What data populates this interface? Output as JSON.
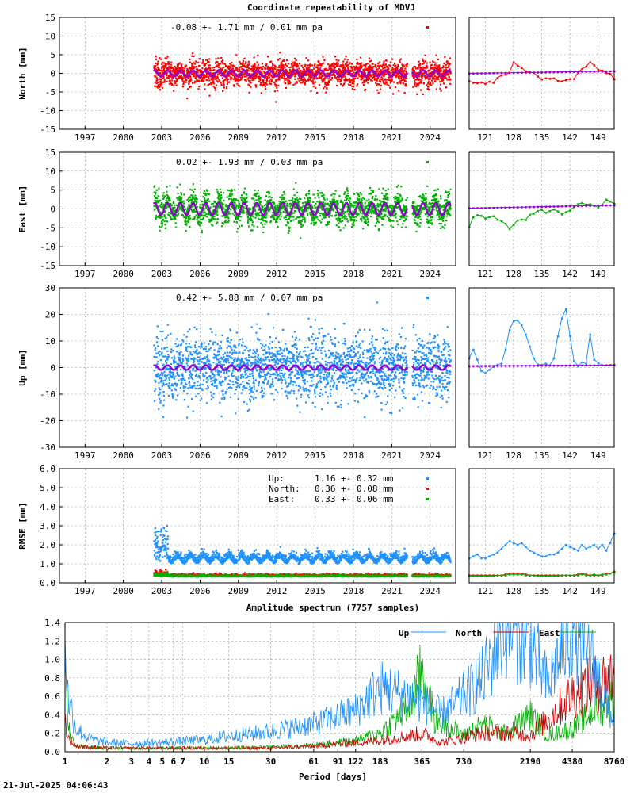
{
  "chart_data": [
    {
      "type": "scatter",
      "title": "Coordinate repeatability of MDVJ",
      "ylabel": "North [mm]",
      "ylim": [
        -15,
        15
      ],
      "yticks": [
        15,
        10,
        5,
        0,
        -5,
        -10,
        -15
      ],
      "xlim": [
        1995.0,
        2026.0
      ],
      "xticks": [
        1997,
        2000,
        2003,
        2006,
        2009,
        2012,
        2015,
        2018,
        2021,
        2024
      ],
      "annotation": "-0.08 +- 1.71 mm /  0.01 mm pa",
      "color": "#ff0000",
      "model_color": "#9400d3",
      "data_span": [
        2002.4,
        2025.6
      ],
      "gap": [
        2022.2,
        2022.6
      ],
      "scatter_sd": 1.7,
      "seasonal_amplitude": 0.8,
      "zoom": {
        "xlim": [
          117,
          153
        ],
        "xticks": [
          121,
          128,
          135,
          142,
          149
        ],
        "ylim": [
          -15,
          15
        ],
        "series": [
          -2.1,
          -2.5,
          -2.6,
          -2.4,
          -2.8,
          -2.2,
          -2.5,
          -1.2,
          -0.5,
          -0.3,
          0.2,
          3.0,
          2.1,
          1.5,
          0.6,
          0.3,
          0.2,
          -0.8,
          -1.6,
          -1.3,
          -1.4,
          -1.3,
          -2.0,
          -2.1,
          -1.8,
          -1.5,
          -1.5,
          0.2,
          1.2,
          1.8,
          3.0,
          2.2,
          1.0,
          0.8,
          0.1,
          -0.1,
          -1.5
        ],
        "model": [
          0.0,
          0.6
        ]
      }
    },
    {
      "type": "scatter",
      "ylabel": "East [mm]",
      "ylim": [
        -15,
        15
      ],
      "yticks": [
        15,
        10,
        5,
        0,
        -5,
        -10,
        -15
      ],
      "xlim": [
        1995.0,
        2026.0
      ],
      "xticks": [
        1997,
        2000,
        2003,
        2006,
        2009,
        2012,
        2015,
        2018,
        2021,
        2024
      ],
      "annotation": "0.02 +- 1.93 mm /  0.03 mm pa",
      "color": "#00b000",
      "model_color": "#9400d3",
      "data_span": [
        2002.4,
        2025.6
      ],
      "gap": [
        2022.2,
        2022.6
      ],
      "scatter_sd": 1.9,
      "seasonal_amplitude": 1.6,
      "zoom": {
        "xlim": [
          117,
          153
        ],
        "xticks": [
          121,
          128,
          135,
          142,
          149
        ],
        "ylim": [
          -15,
          15
        ],
        "series": [
          -4.8,
          -2.2,
          -1.6,
          -1.8,
          -2.5,
          -2.1,
          -1.9,
          -2.8,
          -3.2,
          -3.9,
          -5.3,
          -4.2,
          -3.0,
          -2.8,
          -2.9,
          -1.5,
          -1.2,
          -0.5,
          -0.2,
          -1.0,
          -0.5,
          -0.1,
          -0.6,
          -1.4,
          -0.8,
          -0.4,
          0.5,
          1.3,
          1.6,
          1.2,
          1.3,
          0.9,
          0.4,
          1.1,
          2.5,
          2.0,
          1.4
        ],
        "model": [
          0.2,
          1.0
        ]
      }
    },
    {
      "type": "scatter",
      "ylabel": "Up [mm]",
      "ylim": [
        -30,
        30
      ],
      "yticks": [
        30,
        20,
        10,
        0,
        -10,
        -20,
        -30
      ],
      "xlim": [
        1995.0,
        2026.0
      ],
      "xticks": [
        1997,
        2000,
        2003,
        2006,
        2009,
        2012,
        2015,
        2018,
        2021,
        2024
      ],
      "annotation": "0.42 +- 5.88 mm /  0.07 mm pa",
      "color": "#1e90ff",
      "model_color": "#9400d3",
      "data_span": [
        2002.4,
        2025.6
      ],
      "gap": [
        2022.2,
        2022.6
      ],
      "scatter_sd": 5.9,
      "seasonal_amplitude": 0.9,
      "zoom": {
        "xlim": [
          117,
          153
        ],
        "xticks": [
          121,
          128,
          135,
          142,
          149
        ],
        "ylim": [
          -30,
          30
        ],
        "series": [
          3.5,
          6.8,
          3.0,
          -1.2,
          -2.1,
          -0.8,
          0.3,
          1.1,
          1.5,
          6.8,
          14.2,
          17.5,
          17.8,
          16.0,
          12.5,
          8.0,
          3.5,
          1.2,
          1.0,
          1.5,
          0.8,
          3.5,
          11.8,
          18.5,
          22.0,
          12.0,
          2.5,
          0.5,
          2.0,
          1.5,
          12.5,
          3.0,
          1.8,
          0.9,
          0.9,
          1.0,
          1.0
        ],
        "model": [
          0.6,
          0.9
        ]
      }
    },
    {
      "type": "scatter",
      "ylabel": "RMSE [mm]",
      "ylim": [
        0.0,
        6.0
      ],
      "yticks": [
        6.0,
        5.0,
        4.0,
        3.0,
        2.0,
        1.0,
        0.0
      ],
      "xlim": [
        1995.0,
        2026.0
      ],
      "xticks": [
        1997,
        2000,
        2003,
        2006,
        2009,
        2012,
        2015,
        2018,
        2021,
        2024
      ],
      "legend": [
        {
          "name": "Up:",
          "value": "1.16 +- 0.32 mm",
          "color": "#1e90ff"
        },
        {
          "name": "North:",
          "value": "0.36 +- 0.08 mm",
          "color": "#ff0000"
        },
        {
          "name": "East:",
          "value": "0.33 +- 0.06 mm",
          "color": "#00b000"
        }
      ],
      "series": [
        {
          "name": "Up",
          "mean": 1.16,
          "sd": 0.32,
          "color": "#1e90ff"
        },
        {
          "name": "North",
          "mean": 0.36,
          "sd": 0.08,
          "color": "#ff0000"
        },
        {
          "name": "East",
          "mean": 0.33,
          "sd": 0.06,
          "color": "#00b000"
        }
      ],
      "data_span": [
        2002.4,
        2025.6
      ],
      "gap": [
        2022.2,
        2022.6
      ],
      "zoom": {
        "xlim": [
          117,
          153
        ],
        "xticks": [
          121,
          128,
          135,
          142,
          149
        ],
        "ylim": [
          0.0,
          6.0
        ],
        "series": [
          {
            "name": "Up",
            "color": "#1e90ff",
            "values": [
              1.3,
              1.4,
              1.5,
              1.3,
              1.3,
              1.4,
              1.5,
              1.6,
              1.8,
              2.0,
              2.2,
              2.1,
              2.0,
              2.1,
              1.9,
              1.7,
              1.6,
              1.5,
              1.4,
              1.4,
              1.5,
              1.5,
              1.6,
              1.8,
              2.0,
              1.9,
              1.8,
              1.7,
              2.0,
              1.8,
              1.9,
              2.0,
              1.8,
              2.0,
              1.7,
              2.1,
              2.6
            ]
          },
          {
            "name": "North",
            "color": "#ff0000",
            "values": [
              0.4,
              0.4,
              0.4,
              0.4,
              0.4,
              0.4,
              0.4,
              0.4,
              0.4,
              0.45,
              0.5,
              0.5,
              0.5,
              0.5,
              0.45,
              0.4,
              0.4,
              0.4,
              0.4,
              0.4,
              0.4,
              0.4,
              0.4,
              0.4,
              0.4,
              0.4,
              0.4,
              0.45,
              0.5,
              0.45,
              0.4,
              0.4,
              0.4,
              0.4,
              0.5,
              0.5,
              0.6
            ]
          },
          {
            "name": "East",
            "color": "#00b000",
            "values": [
              0.35,
              0.35,
              0.35,
              0.35,
              0.35,
              0.35,
              0.35,
              0.4,
              0.4,
              0.4,
              0.45,
              0.45,
              0.45,
              0.45,
              0.4,
              0.4,
              0.4,
              0.35,
              0.35,
              0.35,
              0.35,
              0.35,
              0.35,
              0.4,
              0.4,
              0.4,
              0.4,
              0.4,
              0.45,
              0.4,
              0.4,
              0.45,
              0.4,
              0.45,
              0.45,
              0.5,
              0.55
            ]
          }
        ]
      }
    },
    {
      "type": "line",
      "title": "Amplitude spectrum (7757 samples)",
      "xlabel": "Period [days]",
      "xscale": "log",
      "xlim": [
        1,
        8760
      ],
      "ylim": [
        0.0,
        1.4
      ],
      "yticks": [
        1.4,
        1.2,
        1.0,
        0.8,
        0.6,
        0.4,
        0.2,
        0.0
      ],
      "xticks": [
        1,
        2,
        3,
        4,
        5,
        6,
        7,
        10,
        15,
        30,
        61,
        91,
        122,
        183,
        365,
        730,
        2190,
        4380,
        8760
      ],
      "legend_position": "top-right",
      "series": [
        {
          "name": "Up",
          "color": "#1e90ff",
          "x": [
            1,
            1.05,
            1.2,
            1.5,
            2,
            3,
            5,
            10,
            15,
            30,
            61,
            91,
            122,
            183,
            365,
            500,
            730,
            1000,
            1460,
            2190,
            2920,
            4380,
            6000,
            8760
          ],
          "y": [
            1.4,
            0.6,
            0.25,
            0.14,
            0.1,
            0.09,
            0.1,
            0.13,
            0.17,
            0.22,
            0.3,
            0.38,
            0.45,
            0.7,
            0.55,
            0.4,
            0.6,
            0.8,
            1.4,
            1.2,
            0.7,
            1.4,
            1.0,
            0.3
          ]
        },
        {
          "name": "North",
          "color": "#cc0000",
          "x": [
            1,
            1.05,
            1.2,
            2,
            5,
            10,
            30,
            61,
            122,
            183,
            365,
            500,
            730,
            1000,
            1460,
            2190,
            2920,
            4380,
            6000,
            8760
          ],
          "y": [
            0.35,
            0.15,
            0.06,
            0.04,
            0.04,
            0.04,
            0.04,
            0.06,
            0.1,
            0.12,
            0.2,
            0.1,
            0.15,
            0.2,
            0.2,
            0.18,
            0.35,
            0.62,
            0.72,
            0.82
          ]
        },
        {
          "name": "East",
          "color": "#00b000",
          "x": [
            1,
            1.05,
            1.2,
            2,
            5,
            10,
            30,
            61,
            122,
            183,
            300,
            365,
            450,
            730,
            1000,
            1460,
            2190,
            2920,
            4380,
            6000,
            8760
          ],
          "y": [
            0.9,
            0.25,
            0.06,
            0.04,
            0.04,
            0.04,
            0.05,
            0.07,
            0.12,
            0.2,
            0.5,
            0.88,
            0.35,
            0.18,
            0.3,
            0.2,
            0.4,
            0.18,
            0.25,
            0.42,
            0.58
          ]
        }
      ]
    }
  ],
  "footer": {
    "timestamp": "21-Jul-2025 04:06:43"
  }
}
